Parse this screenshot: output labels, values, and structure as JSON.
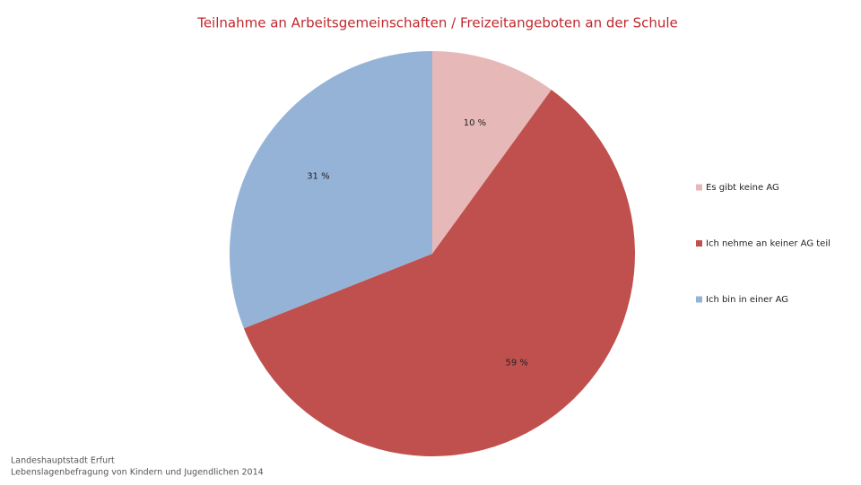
{
  "chart_data": {
    "type": "pie",
    "title": "Teilnahme an Arbeitsgemeinschaften / Freizeitangeboten an der Schule",
    "categories": [
      "Es gibt keine AG",
      "Ich nehme an keiner AG teil",
      "Ich bin in einer AG"
    ],
    "values": [
      10,
      59,
      31
    ],
    "value_labels": [
      "10 %",
      "59 %",
      "31 %"
    ],
    "colors": [
      "#e6b9b8",
      "#c0504d",
      "#95b3d7"
    ],
    "legend": "right",
    "source": [
      "Landeshauptstadt Erfurt",
      "Lebenslagenbefragung von Kindern und Jugendlichen 2014"
    ]
  }
}
